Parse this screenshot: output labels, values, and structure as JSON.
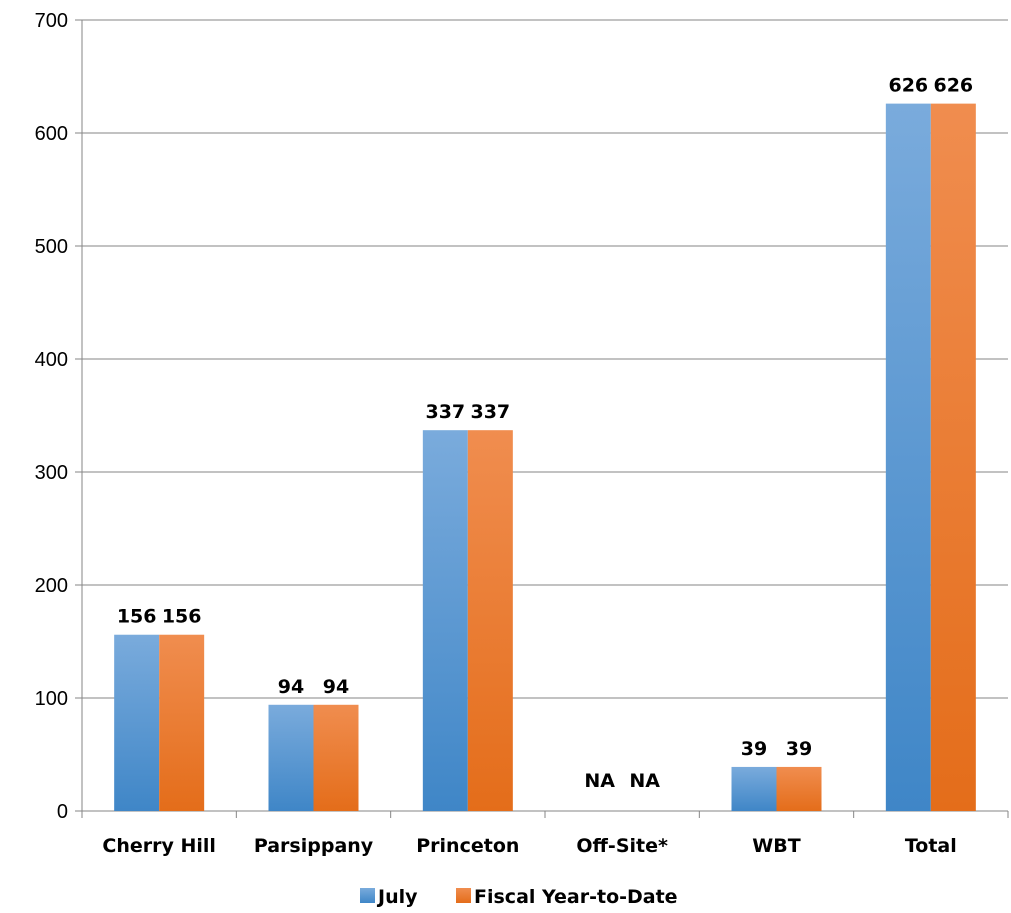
{
  "chart_data": {
    "type": "bar",
    "categories": [
      "Cherry Hill",
      "Parsippany",
      "Princeton",
      "Off-Site*",
      "WBT",
      "Total"
    ],
    "series": [
      {
        "name": "July",
        "values": [
          156,
          94,
          337,
          null,
          39,
          626
        ],
        "labels": [
          "156",
          "94",
          "337",
          "NA",
          "39",
          "626"
        ]
      },
      {
        "name": "Fiscal Year-to-Date",
        "values": [
          156,
          94,
          337,
          null,
          39,
          626
        ],
        "labels": [
          "156",
          "94",
          "337",
          "NA",
          "39",
          "626"
        ]
      }
    ],
    "yticks": [
      "0",
      "100",
      "200",
      "300",
      "400",
      "500",
      "600",
      "700"
    ],
    "ylim": [
      0,
      700
    ],
    "grid": true,
    "legend_position": "bottom",
    "colors": {
      "series": [
        "#5b9bd5",
        "#ed7d31"
      ],
      "gradient_top": [
        "#7aabdc",
        "#f08d4f"
      ],
      "gradient_bottom": [
        "#3f86c7",
        "#e46d1a"
      ],
      "grid": "#868686"
    }
  }
}
